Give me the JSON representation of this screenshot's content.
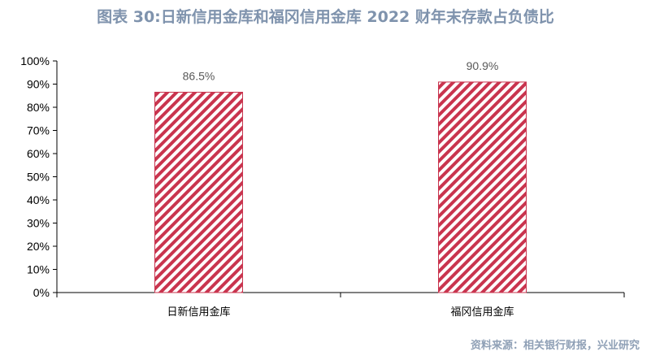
{
  "title": "图表 30:日新信用金库和福冈信用金库 2022 财年末存款占负债比",
  "source": "资料来源：相关银行财报，兴业研究",
  "colors": {
    "title": "#7f93ad",
    "bar_stripe": "#c9344e",
    "bar_outline": "#c9344e",
    "axis": "#000000",
    "data_label": "#595959",
    "source": "#8fa0b6"
  },
  "chart_data": {
    "type": "bar",
    "categories": [
      "日新信用金库",
      "福冈信用金库"
    ],
    "values": [
      86.5,
      90.9
    ],
    "data_labels": [
      "86.5%",
      "90.9%"
    ],
    "y_ticks": [
      "0%",
      "10%",
      "20%",
      "30%",
      "40%",
      "50%",
      "60%",
      "70%",
      "80%",
      "90%",
      "100%"
    ],
    "ylim": [
      0,
      100
    ],
    "grid": false,
    "legend": "none",
    "bar_fill": "diagonal-stripes"
  }
}
